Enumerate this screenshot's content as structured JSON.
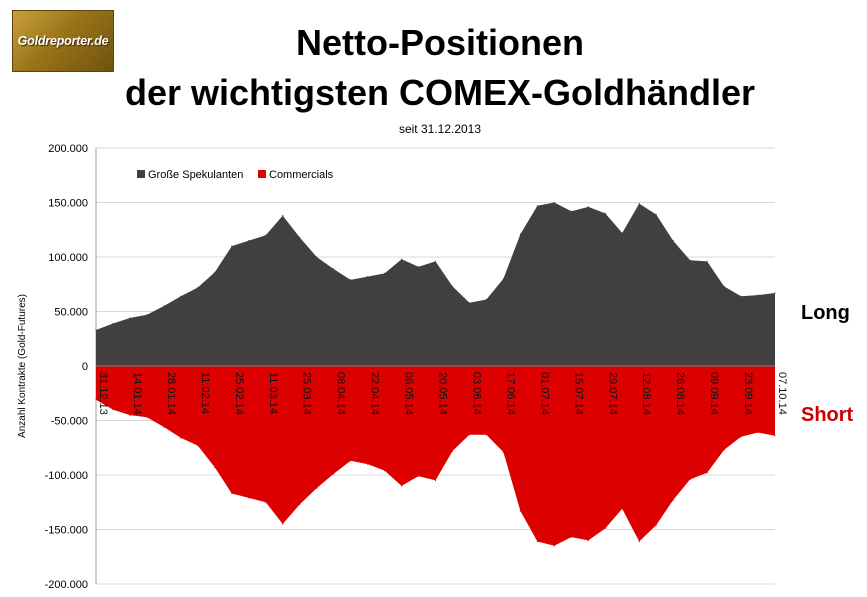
{
  "logo": {
    "text": "Goldreporter.de"
  },
  "title": {
    "line1": "Netto-Positionen",
    "line2": "der wichtigsten COMEX-Goldhändler"
  },
  "subtitle": "seit 31.12.2013",
  "labels": {
    "long": "Long",
    "short": "Short"
  },
  "colors": {
    "spec": "#404040",
    "comm": "#dd0000",
    "long": "#000000",
    "short": "#cc0000"
  },
  "chart_data": {
    "type": "area",
    "ylabel": "Anzahl Kontrakte (Gold-Futures)",
    "ylim": [
      -200000,
      200000
    ],
    "yticks": [
      200000,
      150000,
      100000,
      50000,
      0,
      -50000,
      -100000,
      -150000,
      -200000
    ],
    "ytick_labels": [
      "200.000",
      "150.000",
      "100.000",
      "50.000",
      "0",
      "-50.000",
      "-100.000",
      "-150.000",
      "-200.000"
    ],
    "grid": "horizontal",
    "legend_position": "top-left",
    "x": [
      "31.12.13",
      "07.01.14",
      "14.01.14",
      "21.01.14",
      "28.01.14",
      "04.02.14",
      "11.02.14",
      "18.02.14",
      "25.02.14",
      "04.03.14",
      "11.03.14",
      "18.03.14",
      "25.03.14",
      "01.04.14",
      "08.04.14",
      "15.04.14",
      "22.04.14",
      "29.04.14",
      "06.05.14",
      "13.05.14",
      "20.05.14",
      "27.05.14",
      "03.06.14",
      "10.06.14",
      "17.06.14",
      "24.06.14",
      "01.07.14",
      "08.07.14",
      "15.07.14",
      "22.07.14",
      "29.07.14",
      "05.08.14",
      "12.08.14",
      "19.08.14",
      "26.08.14",
      "02.09.14",
      "09.09.14",
      "16.09.14",
      "23.09.14",
      "30.09.14",
      "07.10.14"
    ],
    "x_tick_labels": [
      "31.12.13",
      "14.01.14",
      "28.01.14",
      "11.02.14",
      "25.02.14",
      "11.03.14",
      "25.03.14",
      "08.04.14",
      "22.04.14",
      "06.05.14",
      "20.05.14",
      "03.06.14",
      "17.06.14",
      "01.07.14",
      "15.07.14",
      "29.07.14",
      "12.08.14",
      "26.08.14",
      "09.09.14",
      "23.09.14",
      "07.10.14"
    ],
    "series": [
      {
        "name": "Große Spekulanten",
        "values": [
          33000,
          39000,
          44000,
          47000,
          55000,
          64000,
          72000,
          86000,
          110000,
          115000,
          120000,
          138000,
          118000,
          100000,
          89000,
          79000,
          82000,
          85000,
          98000,
          91000,
          96000,
          73000,
          58000,
          61000,
          80000,
          121000,
          147000,
          150000,
          142000,
          146000,
          140000,
          122000,
          149000,
          139000,
          115000,
          97000,
          96000,
          73000,
          64000,
          65000,
          67000
        ]
      },
      {
        "name": "Commercials",
        "values": [
          -31000,
          -40000,
          -45000,
          -47000,
          -56000,
          -66000,
          -73000,
          -93000,
          -117000,
          -121000,
          -125000,
          -145000,
          -127000,
          -112000,
          -99000,
          -87000,
          -90000,
          -96000,
          -110000,
          -101000,
          -105000,
          -78000,
          -63000,
          -63000,
          -79000,
          -133000,
          -161000,
          -165000,
          -157000,
          -160000,
          -149000,
          -131000,
          -161000,
          -146000,
          -123000,
          -104000,
          -98000,
          -77000,
          -65000,
          -61000,
          -64000
        ]
      }
    ]
  }
}
